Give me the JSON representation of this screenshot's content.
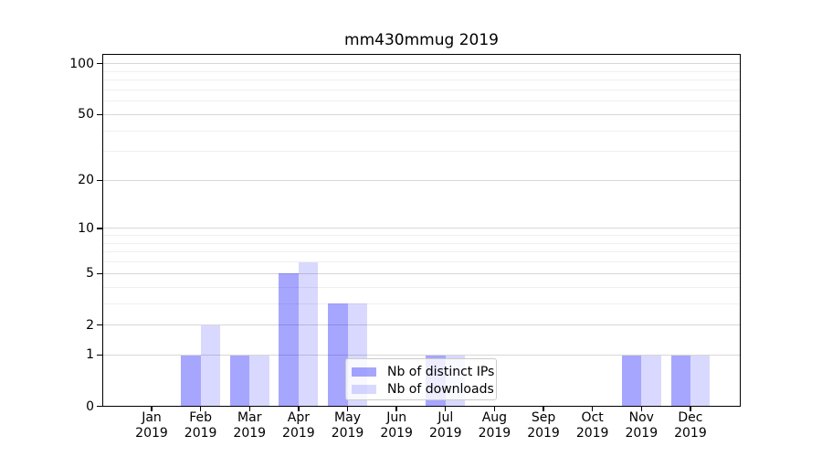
{
  "chart_data": {
    "type": "bar",
    "title": "mm430mmug 2019",
    "categories": [
      "Jan",
      "Feb",
      "Mar",
      "Apr",
      "May",
      "Jun",
      "Jul",
      "Aug",
      "Sep",
      "Oct",
      "Nov",
      "Dec"
    ],
    "x_tick_year": "2019",
    "series": [
      {
        "name": "Nb of distinct IPs",
        "color": "#0000ff",
        "alpha": 0.35,
        "values": [
          0,
          1,
          1,
          5,
          3,
          0,
          1,
          0,
          0,
          0,
          1,
          1
        ]
      },
      {
        "name": "Nb of downloads",
        "color": "#0000ff",
        "alpha": 0.15,
        "values": [
          0,
          2,
          1,
          6,
          3,
          0,
          1,
          0,
          0,
          0,
          1,
          1
        ]
      }
    ],
    "xlabel": "",
    "ylabel": "",
    "yscale": "log1p",
    "ylim": [
      0,
      114
    ],
    "y_major_ticks": [
      0,
      1,
      2,
      5,
      10,
      20,
      50,
      100
    ],
    "y_minor_gridlines": [
      3,
      4,
      6,
      7,
      8,
      9,
      30,
      40,
      60,
      70,
      80,
      90
    ],
    "grid": true,
    "legend_position": "lower center",
    "colors": {
      "major_grid": "#d7d7d7",
      "minor_grid": "#efefef",
      "axis": "#000000",
      "text": "#000000",
      "background": "#ffffff"
    }
  }
}
